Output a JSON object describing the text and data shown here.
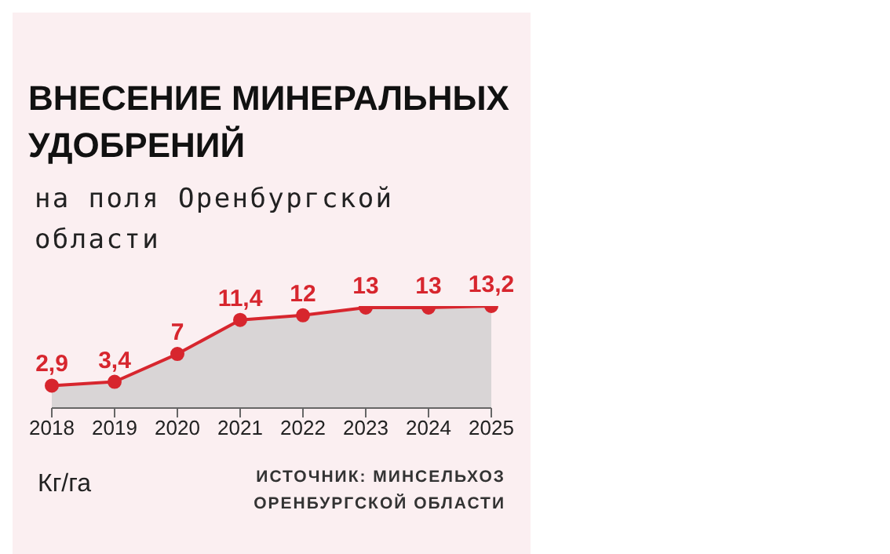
{
  "chart_data": {
    "type": "area",
    "title": "ВНЕСЕНИЕ МИНЕРАЛЬНЫХ УДОБРЕНИЙ",
    "subtitle": "на поля Оренбургской области",
    "annotations": [
      "Кг/га",
      "ИСТОЧНИК: МИНСЕЛЬХОЗ ОРЕНБУРГСКОЙ ОБЛАСТИ"
    ],
    "categories": [
      "2018",
      "2019",
      "2020",
      "2021",
      "2022",
      "2023",
      "2024",
      "2025"
    ],
    "series": [
      {
        "color": "#d7262e",
        "values": [
          2.9,
          3.4,
          7,
          11.4,
          12,
          13,
          13,
          13.2
        ],
        "value_labels": [
          "2,9",
          "3,4",
          "7",
          "11,4",
          "12",
          "13",
          "13",
          "13,2"
        ]
      }
    ],
    "marker": "circle",
    "grid": false,
    "legend": false
  }
}
